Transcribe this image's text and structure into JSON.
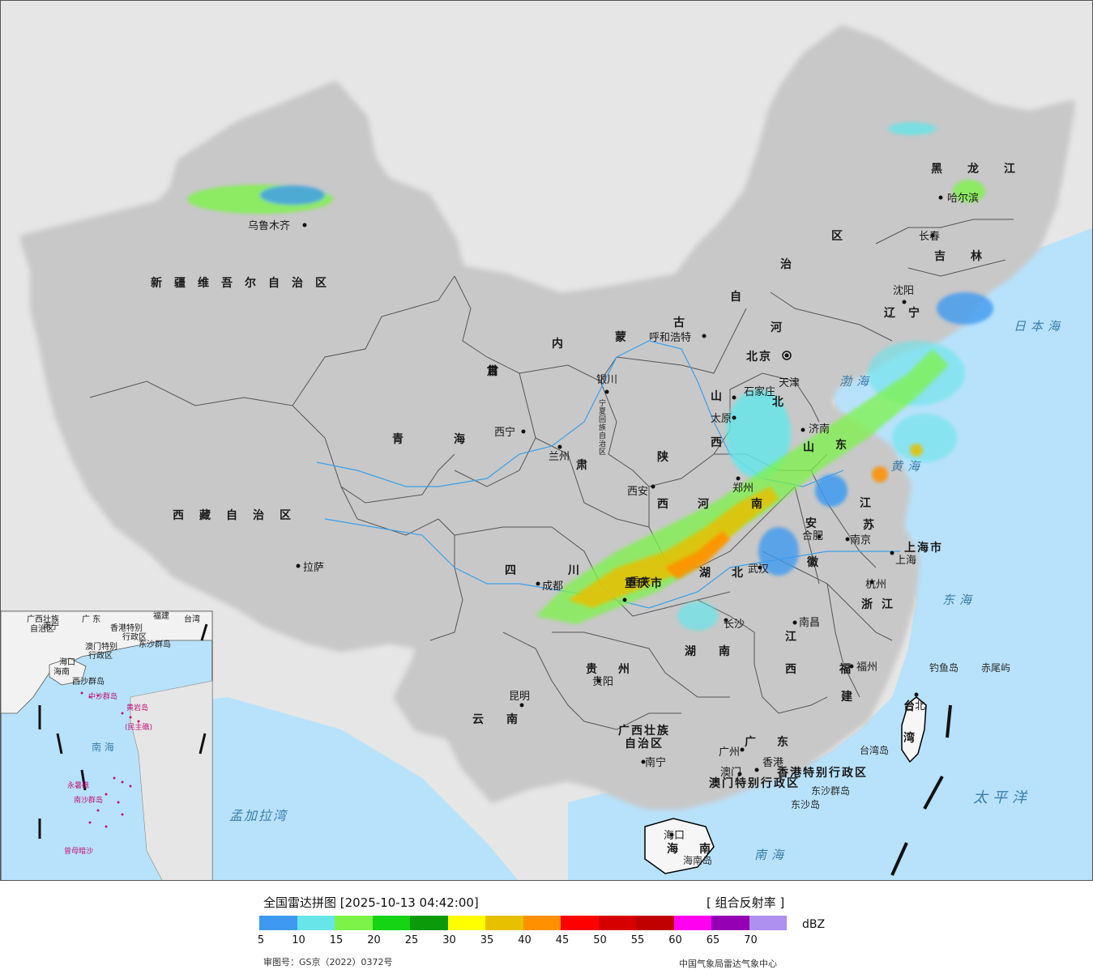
{
  "map": {
    "provinces": [
      {
        "name": "新疆维吾尔自治区",
        "key": "xinjiang"
      },
      {
        "name": "西藏自治区",
        "key": "xizang"
      },
      {
        "name": "青海",
        "key": "qinghai"
      },
      {
        "name": "甘肃",
        "key": "gansu"
      },
      {
        "name": "内蒙古",
        "key": "neimenggu"
      },
      {
        "name": "黑龙江",
        "key": "heilongjiang"
      },
      {
        "name": "吉林",
        "key": "jilin"
      },
      {
        "name": "辽宁",
        "key": "liaoning"
      },
      {
        "name": "河北",
        "key": "hebei"
      },
      {
        "name": "山西",
        "key": "shanxi"
      },
      {
        "name": "山东",
        "key": "shandong"
      },
      {
        "name": "河南",
        "key": "henan"
      },
      {
        "name": "陕西",
        "key": "shaanxi"
      },
      {
        "name": "四川",
        "key": "sichuan"
      },
      {
        "name": "湖北",
        "key": "hubei"
      },
      {
        "name": "安徽",
        "key": "anhui"
      },
      {
        "name": "江苏",
        "key": "jiangsu"
      },
      {
        "name": "浙江",
        "key": "zhejiang"
      },
      {
        "name": "江西",
        "key": "jiangxi"
      },
      {
        "name": "湖南",
        "key": "hunan"
      },
      {
        "name": "贵州",
        "key": "guizhou"
      },
      {
        "name": "云南",
        "key": "yunnan"
      },
      {
        "name": "福建",
        "key": "fujian"
      },
      {
        "name": "广东",
        "key": "guangdong"
      },
      {
        "name": "台湾",
        "key": "taiwan"
      },
      {
        "name": "宁夏回族自治区",
        "key": "ningxia"
      },
      {
        "name": "广西壮族自治区",
        "key": "guangxi"
      },
      {
        "name": "海南",
        "key": "hainan"
      }
    ],
    "municipalities": {
      "beijing": "北京",
      "tianjin": "天津",
      "shanghai": "上海市",
      "chongqing": "重庆市"
    },
    "cities": [
      "乌鲁木齐",
      "拉萨",
      "西宁",
      "兰州",
      "银川",
      "呼和浩特",
      "太原",
      "石家庄",
      "济南",
      "郑州",
      "西安",
      "成都",
      "重庆",
      "贵阳",
      "昆明",
      "南宁",
      "广州",
      "香港",
      "澳门",
      "长沙",
      "武汉",
      "南昌",
      "合肥",
      "南京",
      "上海",
      "杭州",
      "福州",
      "台北",
      "哈尔滨",
      "长春",
      "沈阳",
      "海口"
    ],
    "special_regions": {
      "hk": "香港特别行政区",
      "mo": "澳门特别行政区"
    },
    "seas": {
      "bohai": "渤海",
      "yellow": "黄海",
      "east": "东海",
      "south": "南海",
      "pacific": "太平洋",
      "japan": "日本海",
      "bengal": "孟加拉湾"
    },
    "islands": {
      "diaoyu": "钓鱼岛",
      "chiwei": "赤尾屿",
      "taiwan_island": "台湾岛",
      "dongsha_islands": "东沙群岛",
      "dongsha_island": "东沙岛",
      "hainan_island": "海南岛"
    },
    "region_glyphs": {
      "ningxia_vert": [
        "宁",
        "夏",
        "回",
        "族",
        "自",
        "治",
        "区"
      ],
      "nmg_extra": [
        "自",
        "治",
        "区"
      ]
    }
  },
  "inset": {
    "labels": {
      "guangxi": "广西壮族",
      "guangxi2": "自治区",
      "nanning": "南宁",
      "guangdong": "广  东",
      "fujian": "福建",
      "taiwan": "台湾",
      "hk_region": "香港特别",
      "hk_region2": "行政区",
      "mo_region": "澳门特别",
      "mo_region2": "行政区",
      "dongsha": "东沙群岛",
      "hainan": "海南",
      "haikou": "海口",
      "xisha": "西沙群岛",
      "zhongsha": "中沙群岛",
      "huangyan": "黄岩岛",
      "huangyan2": "(民主礁)",
      "sea": "南  海",
      "nansha": "南沙群岛",
      "yongshu": "永暑礁",
      "zengmu": "曾母暗沙"
    }
  },
  "legend": {
    "title": "全国雷达拼图 [2025-10-13 04:42:00]",
    "product": "[ 组合反射率 ]",
    "unit": "dBZ",
    "colors": [
      "#3d9af0",
      "#67e5e9",
      "#7df34a",
      "#14d414",
      "#0a9a0a",
      "#ffff00",
      "#e7c000",
      "#ff9000",
      "#ff0000",
      "#d60000",
      "#c00000",
      "#ff00f0",
      "#9600b4",
      "#ad90f0"
    ],
    "ticks": [
      "5",
      "10",
      "15",
      "20",
      "25",
      "30",
      "35",
      "40",
      "45",
      "50",
      "55",
      "60",
      "65",
      "70"
    ],
    "approval": "审图号：GS京（2022）0372号",
    "source": "中国气象局雷达气象中心"
  }
}
